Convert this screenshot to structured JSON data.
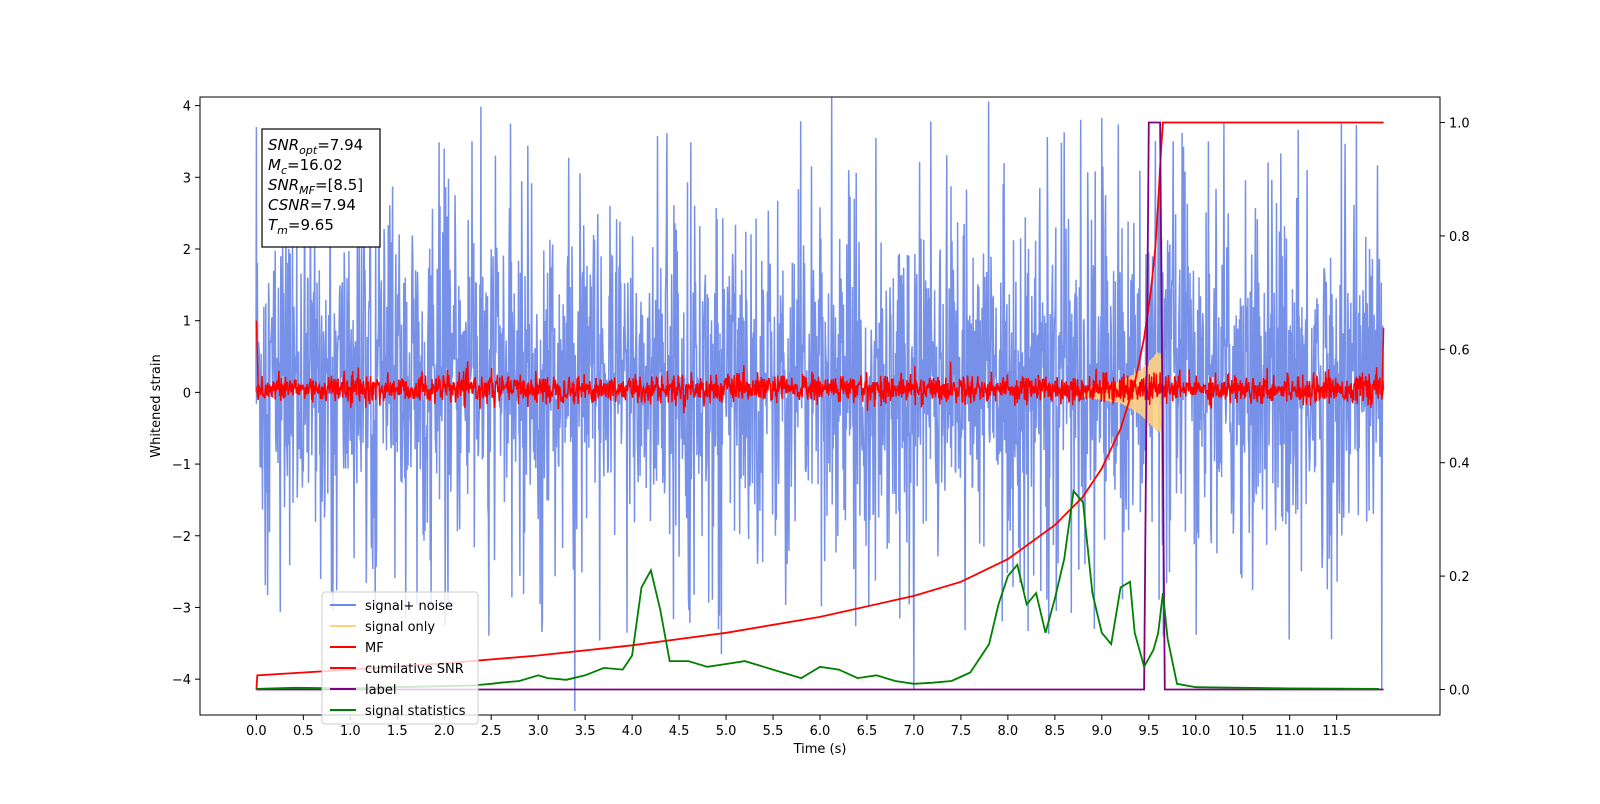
{
  "chart_data": {
    "type": "line",
    "xlabel": "Time (s)",
    "ylabel": "Whitened strain",
    "xlim": [
      -0.6,
      12.6
    ],
    "ylim": [
      -4.5,
      4.12
    ],
    "y2lim": [
      -0.045,
      1.045
    ],
    "x_ticks": [
      0.0,
      0.5,
      1.0,
      1.5,
      2.0,
      2.5,
      3.0,
      3.5,
      4.0,
      4.5,
      5.0,
      5.5,
      6.0,
      6.5,
      7.0,
      7.5,
      8.0,
      8.5,
      9.0,
      9.5,
      10.0,
      10.5,
      11.0,
      11.5
    ],
    "x_tick_labels": [
      "0.0",
      "0.5",
      "1.0",
      "1.5",
      "2.0",
      "2.5",
      "3.0",
      "3.5",
      "4.0",
      "4.5",
      "5.0",
      "5.5",
      "6.0",
      "6.5",
      "7.0",
      "7.5",
      "8.0",
      "8.5",
      "9.0",
      "9.5",
      "10.0",
      "10.5",
      "11.0",
      "11.5"
    ],
    "y_ticks": [
      4,
      3,
      2,
      1,
      0,
      -1,
      -2,
      -3,
      -4
    ],
    "y_tick_labels": [
      "4",
      "3",
      "2",
      "1",
      "0",
      "−1",
      "−2",
      "−3",
      "−4"
    ],
    "y2_ticks": [
      1.0,
      0.8,
      0.6,
      0.4,
      0.2,
      0.0
    ],
    "y2_tick_labels": [
      "1.0",
      "0.8",
      "0.6",
      "0.4",
      "0.2",
      "0.0"
    ],
    "grid": false,
    "legend_position": "lower-left",
    "legend": [
      {
        "label": "signal+ noise",
        "color": "#6b88e6"
      },
      {
        "label": "signal only",
        "color": "#ffd27f"
      },
      {
        "label": "MF",
        "color": "#ff0000"
      },
      {
        "label": "cumilative SNR",
        "color": "#ff0000"
      },
      {
        "label": "label",
        "color": "#800080"
      },
      {
        "label": "signal statistics",
        "color": "#008000"
      }
    ],
    "annotation": {
      "lines": [
        {
          "name": "SNR",
          "sub": "opt",
          "value": "=7.94"
        },
        {
          "name": "M",
          "sub": "c",
          "value": "=16.02"
        },
        {
          "name": "SNR",
          "sub": "MF",
          "value": "=[8.5]"
        },
        {
          "name": "CSNR",
          "sub": "",
          "value": "=7.94"
        },
        {
          "name": "T",
          "sub": "m",
          "value": "=9.65"
        }
      ]
    },
    "series": [
      {
        "name": "signal+ noise",
        "axis": "left",
        "color": "#6b88e6",
        "x_range": [
          0.0,
          12.0
        ],
        "approx_band": [
          -1.9,
          2.3
        ],
        "notable_points": [
          {
            "x": 0.0,
            "y": 3.7
          },
          {
            "x": 2.0,
            "y": 3.4
          },
          {
            "x": 4.95,
            "y": -3.65
          },
          {
            "x": 11.55,
            "y": 3.75
          },
          {
            "x": 11.98,
            "y": -4.15
          }
        ]
      },
      {
        "name": "signal only",
        "axis": "left",
        "color": "#ffd27f",
        "x_range": [
          8.8,
          9.65
        ],
        "envelope": [
          {
            "x": 8.8,
            "amp": 0.05
          },
          {
            "x": 9.2,
            "amp": 0.15
          },
          {
            "x": 9.4,
            "amp": 0.3
          },
          {
            "x": 9.55,
            "amp": 0.5
          },
          {
            "x": 9.62,
            "amp": 0.6
          },
          {
            "x": 9.65,
            "amp": 0.0
          }
        ]
      },
      {
        "name": "MF",
        "axis": "left",
        "color": "#ff0000",
        "x_range": [
          0.0,
          12.0
        ],
        "approx_band": [
          -0.15,
          0.25
        ],
        "edge_values": [
          {
            "x": 0.0,
            "y": 1.0
          },
          {
            "x": 0.02,
            "y": 0.1
          },
          {
            "x": 11.98,
            "y": -0.1
          },
          {
            "x": 12.0,
            "y": 0.9
          }
        ]
      },
      {
        "name": "cumilative SNR",
        "axis": "right",
        "color": "#ff0000",
        "points": [
          [
            0.0,
            0.0
          ],
          [
            0.01,
            0.025
          ],
          [
            1.0,
            0.035
          ],
          [
            2.0,
            0.046
          ],
          [
            3.0,
            0.06
          ],
          [
            4.0,
            0.078
          ],
          [
            5.0,
            0.1
          ],
          [
            6.0,
            0.128
          ],
          [
            7.0,
            0.165
          ],
          [
            7.5,
            0.19
          ],
          [
            8.0,
            0.23
          ],
          [
            8.5,
            0.29
          ],
          [
            8.8,
            0.34
          ],
          [
            9.0,
            0.39
          ],
          [
            9.2,
            0.46
          ],
          [
            9.35,
            0.54
          ],
          [
            9.45,
            0.62
          ],
          [
            9.52,
            0.7
          ],
          [
            9.57,
            0.78
          ],
          [
            9.6,
            0.86
          ],
          [
            9.63,
            0.95
          ],
          [
            9.65,
            1.0
          ],
          [
            12.0,
            1.0
          ]
        ]
      },
      {
        "name": "label",
        "axis": "right",
        "color": "#800080",
        "points": [
          [
            0.0,
            0.0
          ],
          [
            9.45,
            0.0
          ],
          [
            9.5,
            1.0
          ],
          [
            9.62,
            1.0
          ],
          [
            9.67,
            0.0
          ],
          [
            12.0,
            0.0
          ]
        ]
      },
      {
        "name": "signal statistics",
        "axis": "right",
        "color": "#008000",
        "points": [
          [
            0.0,
            0.001
          ],
          [
            0.4,
            0.003
          ],
          [
            1.0,
            0.002
          ],
          [
            1.5,
            0.004
          ],
          [
            2.0,
            0.006
          ],
          [
            2.3,
            0.007
          ],
          [
            2.5,
            0.01
          ],
          [
            2.6,
            0.012
          ],
          [
            2.8,
            0.015
          ],
          [
            3.0,
            0.025
          ],
          [
            3.1,
            0.02
          ],
          [
            3.3,
            0.017
          ],
          [
            3.5,
            0.025
          ],
          [
            3.7,
            0.038
          ],
          [
            3.9,
            0.035
          ],
          [
            4.0,
            0.06
          ],
          [
            4.1,
            0.18
          ],
          [
            4.2,
            0.21
          ],
          [
            4.3,
            0.14
          ],
          [
            4.4,
            0.05
          ],
          [
            4.6,
            0.05
          ],
          [
            4.8,
            0.04
          ],
          [
            5.0,
            0.045
          ],
          [
            5.2,
            0.05
          ],
          [
            5.4,
            0.04
          ],
          [
            5.6,
            0.03
          ],
          [
            5.8,
            0.02
          ],
          [
            6.0,
            0.04
          ],
          [
            6.2,
            0.035
          ],
          [
            6.4,
            0.02
          ],
          [
            6.6,
            0.025
          ],
          [
            6.8,
            0.015
          ],
          [
            7.0,
            0.01
          ],
          [
            7.2,
            0.012
          ],
          [
            7.4,
            0.015
          ],
          [
            7.6,
            0.03
          ],
          [
            7.8,
            0.08
          ],
          [
            7.9,
            0.15
          ],
          [
            8.0,
            0.2
          ],
          [
            8.1,
            0.22
          ],
          [
            8.2,
            0.15
          ],
          [
            8.3,
            0.17
          ],
          [
            8.4,
            0.1
          ],
          [
            8.5,
            0.16
          ],
          [
            8.6,
            0.23
          ],
          [
            8.7,
            0.35
          ],
          [
            8.8,
            0.33
          ],
          [
            8.9,
            0.17
          ],
          [
            9.0,
            0.1
          ],
          [
            9.1,
            0.08
          ],
          [
            9.2,
            0.18
          ],
          [
            9.3,
            0.19
          ],
          [
            9.35,
            0.1
          ],
          [
            9.45,
            0.04
          ],
          [
            9.55,
            0.07
          ],
          [
            9.6,
            0.1
          ],
          [
            9.65,
            0.17
          ],
          [
            9.7,
            0.09
          ],
          [
            9.8,
            0.01
          ],
          [
            10.0,
            0.004
          ],
          [
            11.0,
            0.002
          ],
          [
            11.95,
            0.001
          ]
        ]
      }
    ]
  }
}
